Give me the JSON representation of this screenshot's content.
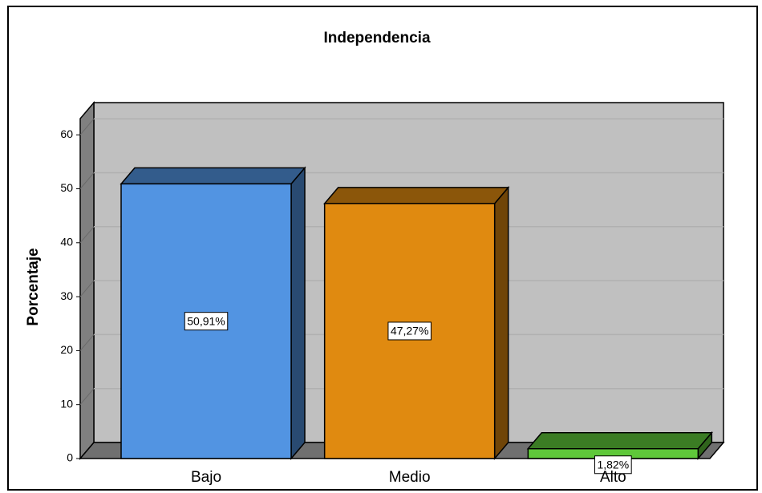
{
  "chart_data": {
    "type": "bar3d",
    "title": "Independencia",
    "y_label": "Porcentaje",
    "categories": [
      "Bajo",
      "Medio",
      "Alto"
    ],
    "values": [
      50.91,
      47.27,
      1.82
    ],
    "value_labels": [
      "50,91%",
      "47,27%",
      "1,82%"
    ],
    "colors": [
      "#5294e2",
      "#e08a10",
      "#5fc83a"
    ],
    "ylim": [
      0,
      63
    ],
    "yticks": [
      0,
      10,
      20,
      30,
      40,
      50,
      60
    ],
    "grid": true
  }
}
